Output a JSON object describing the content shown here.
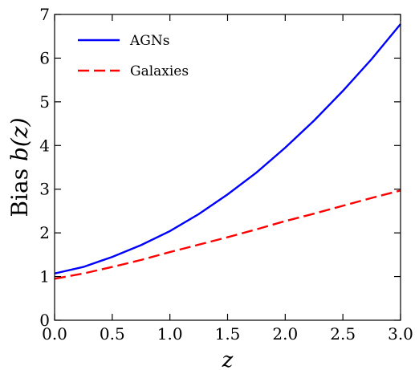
{
  "chart_data": {
    "type": "line",
    "xlabel": "z",
    "ylabel_prefix": "Bias ",
    "ylabel_math": "b(z)",
    "xlim": [
      0.0,
      3.0
    ],
    "ylim": [
      0,
      7
    ],
    "x_ticks": [
      "0.0",
      "0.5",
      "1.0",
      "1.5",
      "2.0",
      "2.5",
      "3.0"
    ],
    "y_ticks": [
      "0",
      "1",
      "2",
      "3",
      "4",
      "5",
      "6",
      "7"
    ],
    "grid": false,
    "legend_position": "top-left",
    "x": [
      0.0,
      0.25,
      0.5,
      0.75,
      1.0,
      1.25,
      1.5,
      1.75,
      2.0,
      2.25,
      2.5,
      2.75,
      3.0
    ],
    "series": [
      {
        "name": "AGNs",
        "color": "#0000ff",
        "style": "solid",
        "values": [
          1.07,
          1.22,
          1.45,
          1.72,
          2.04,
          2.43,
          2.88,
          3.38,
          3.95,
          4.57,
          5.25,
          5.98,
          6.78
        ]
      },
      {
        "name": "Galaxies",
        "color": "#ff0000",
        "style": "dashed",
        "values": [
          0.95,
          1.07,
          1.22,
          1.38,
          1.56,
          1.73,
          1.9,
          2.08,
          2.27,
          2.44,
          2.62,
          2.8,
          2.97
        ]
      }
    ]
  }
}
